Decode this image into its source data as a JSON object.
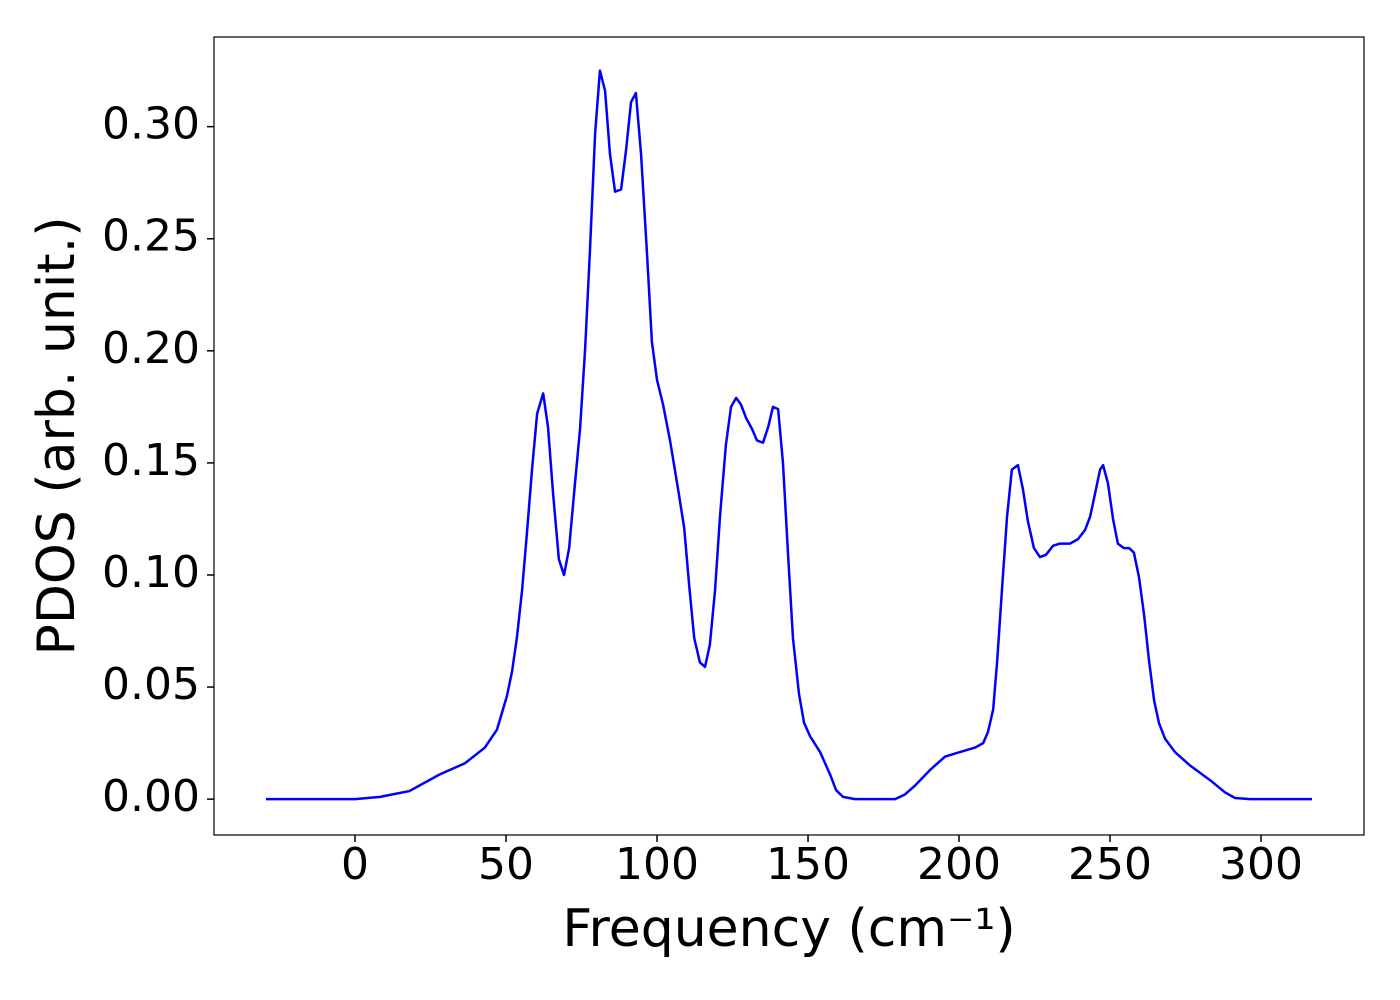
{
  "chart_data": {
    "type": "line",
    "x_label": "Frequency (cm⁻¹)",
    "y_label": "PDOS (arb. unit.)",
    "xlim": [
      -46.7,
      334.1
    ],
    "ylim": [
      -0.016,
      0.34
    ],
    "xticks": [
      0,
      50,
      100,
      150,
      200,
      250,
      300
    ],
    "yticks": [
      {
        "value": 0,
        "label": "0.00"
      },
      {
        "value": 0.05,
        "label": "0.05"
      },
      {
        "value": 0.1,
        "label": "0.10"
      },
      {
        "value": 0.15,
        "label": "0.15"
      },
      {
        "value": 0.2,
        "label": "0.20"
      },
      {
        "value": 0.25,
        "label": "0.25"
      },
      {
        "value": 0.3,
        "label": "0.30"
      }
    ],
    "grid": false,
    "x": [
      -29.5,
      0,
      8.3,
      18,
      28,
      36.4,
      43,
      47,
      50.3,
      52,
      53.6,
      55.3,
      57,
      58.6,
      60.3,
      62.3,
      63.9,
      65.6,
      67.5,
      69.2,
      70.9,
      72.5,
      74.5,
      76.2,
      77.8,
      79.5,
      81.1,
      82.8,
      84.4,
      86.1,
      88.1,
      89.7,
      91.4,
      93,
      94.7,
      96.7,
      98.3,
      100,
      102,
      104.3,
      107,
      109,
      110.6,
      112.3,
      114.2,
      115.9,
      117.5,
      119.2,
      120.9,
      122.8,
      124.5,
      126.2,
      127.8,
      129.5,
      131.5,
      133.1,
      135.1,
      136.8,
      138.4,
      140.1,
      141.7,
      143.4,
      145,
      147,
      148.7,
      150.7,
      154,
      157.3,
      159.3,
      161.6,
      165.6,
      178.8,
      182,
      185.4,
      190.4,
      195.4,
      200.3,
      205.3,
      208,
      209.6,
      211.3,
      212.6,
      214.2,
      215.9,
      217.5,
      219.5,
      221.2,
      222.8,
      224.8,
      226.8,
      228.8,
      231.1,
      233.4,
      236.8,
      239.4,
      241.7,
      243.4,
      245,
      246.7,
      247.7,
      249.3,
      251,
      252.6,
      254.6,
      256.3,
      257.9,
      259.6,
      261.3,
      262.9,
      264.6,
      266.2,
      268.2,
      271.5,
      276.5,
      283.1,
      288.1,
      291.4,
      296.4,
      316.9
    ],
    "series": [
      {
        "color": "#0000ff",
        "values": [
          0,
          0,
          0.001,
          0.0036,
          0.011,
          0.016,
          0.023,
          0.031,
          0.046,
          0.057,
          0.072,
          0.093,
          0.12,
          0.147,
          0.172,
          0.181,
          0.166,
          0.136,
          0.107,
          0.1,
          0.112,
          0.136,
          0.165,
          0.201,
          0.245,
          0.297,
          0.325,
          0.316,
          0.288,
          0.271,
          0.272,
          0.289,
          0.311,
          0.315,
          0.288,
          0.243,
          0.204,
          0.187,
          0.176,
          0.16,
          0.138,
          0.121,
          0.096,
          0.072,
          0.061,
          0.059,
          0.069,
          0.093,
          0.127,
          0.158,
          0.175,
          0.179,
          0.176,
          0.17,
          0.165,
          0.16,
          0.159,
          0.166,
          0.175,
          0.174,
          0.15,
          0.109,
          0.072,
          0.047,
          0.034,
          0.028,
          0.021,
          0.011,
          0.004,
          0.001,
          0,
          0,
          0.002,
          0.006,
          0.013,
          0.019,
          0.021,
          0.023,
          0.025,
          0.03,
          0.04,
          0.061,
          0.093,
          0.126,
          0.147,
          0.149,
          0.138,
          0.124,
          0.112,
          0.108,
          0.109,
          0.113,
          0.114,
          0.114,
          0.116,
          0.12,
          0.126,
          0.136,
          0.147,
          0.149,
          0.141,
          0.125,
          0.114,
          0.112,
          0.112,
          0.11,
          0.099,
          0.082,
          0.062,
          0.044,
          0.034,
          0.027,
          0.021,
          0.015,
          0.0085,
          0.003,
          0.0005,
          0,
          0
        ]
      }
    ]
  }
}
